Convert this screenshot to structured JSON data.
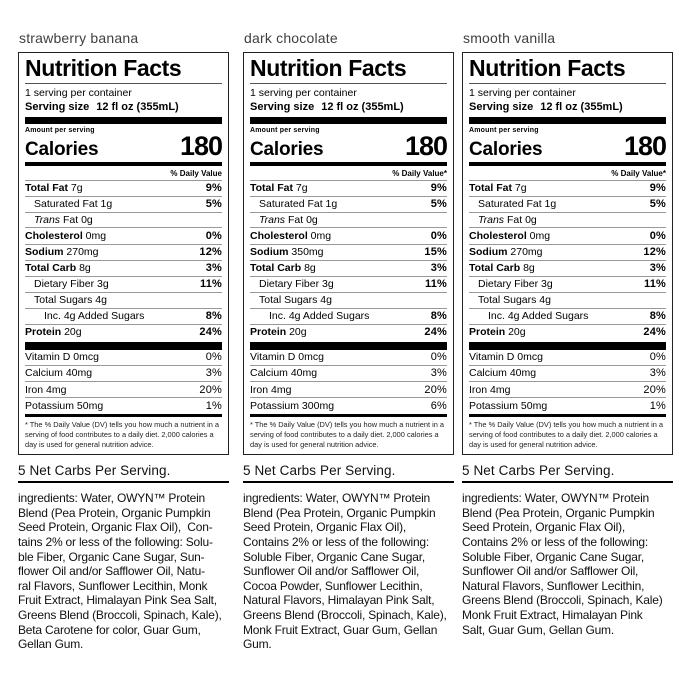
{
  "labels": [
    {
      "flavor": "strawberry banana",
      "title": "Nutrition Facts",
      "servings": "1 serving per container",
      "serving_size_label": "Serving size",
      "serving_size_value": "12 fl oz (355mL)",
      "amount_per_serving": "Amount per serving",
      "calories_label": "Calories",
      "calories_value": "180",
      "daily_value_header": "% Daily Value",
      "rows": [
        {
          "bold": "Total Fat",
          "rest": " 7g",
          "value": "9%",
          "indent": 0,
          "value_bold": true
        },
        {
          "rest": "Saturated Fat 1g",
          "value": "5%",
          "indent": 1,
          "value_bold": true
        },
        {
          "italic": "Trans",
          "rest": " Fat 0g",
          "value": "",
          "indent": 1
        },
        {
          "bold": "Cholesterol",
          "rest": " 0mg",
          "value": "0%",
          "indent": 0,
          "value_bold": true
        },
        {
          "bold": "Sodium",
          "rest": " 270mg",
          "value": "12%",
          "indent": 0,
          "value_bold": true
        },
        {
          "bold": "Total Carb",
          "rest": " 8g",
          "value": "3%",
          "indent": 0,
          "value_bold": true
        },
        {
          "rest": "Dietary Fiber 3g",
          "value": "11%",
          "indent": 1,
          "value_bold": true
        },
        {
          "rest": "Total Sugars 4g",
          "value": "",
          "indent": 1
        },
        {
          "rest": "Inc. 4g Added Sugars",
          "value": "8%",
          "indent": 2,
          "value_bold": true
        },
        {
          "bold": "Protein",
          "rest": " 20g",
          "value": "24%",
          "indent": 0,
          "value_bold": true
        }
      ],
      "vitamins": [
        {
          "name": "Vitamin D 0mcg",
          "value": "0%"
        },
        {
          "name": "Calcium 40mg",
          "value": "3%"
        },
        {
          "name": "Iron 4mg",
          "value": "20%"
        },
        {
          "name": "Potassium 50mg",
          "value": "1%"
        }
      ],
      "footnote": "* The % Daily Value (DV) tells you how much a nutrient in a serving of food contributes to a daily diet. 2,000 calories a day is used for general nutrition advice.",
      "net_carbs": "5 Net Carbs Per Serving.",
      "ingredients_lines": [
        "ingredients: Water, OWYN™ Protein",
        "Blend (Pea Protein, Organic Pumpkin",
        "Seed Protein, Organic Flax Oil),  Con-",
        "tains 2% or less of the following: Solu-",
        "ble Fiber, Organic Cane Sugar, Sun-",
        "flower Oil and/or Safflower Oil, Natu-",
        "ral Flavors, Sunflower Lecithin, Monk",
        "Fruit Extract, Himalayan Pink Sea Salt,",
        "Greens Blend (Broccoli, Spinach, Kale),",
        "Beta Carotene for color, Guar Gum,",
        "Gellan Gum."
      ]
    },
    {
      "flavor": "dark chocolate",
      "title": "Nutrition Facts",
      "servings": "1 serving per container",
      "serving_size_label": "Serving size",
      "serving_size_value": "12 fl oz (355mL)",
      "amount_per_serving": "Amount per serving",
      "calories_label": "Calories",
      "calories_value": "180",
      "daily_value_header": "% Daily Value*",
      "rows": [
        {
          "bold": "Total Fat",
          "rest": " 7g",
          "value": "9%",
          "indent": 0,
          "value_bold": true
        },
        {
          "rest": "Saturated Fat 1g",
          "value": "5%",
          "indent": 1,
          "value_bold": true
        },
        {
          "italic": "Trans",
          "rest": " Fat 0g",
          "value": "",
          "indent": 1
        },
        {
          "bold": "Cholesterol",
          "rest": " 0mg",
          "value": "0%",
          "indent": 0,
          "value_bold": true
        },
        {
          "bold": "Sodium",
          "rest": " 350mg",
          "value": "15%",
          "indent": 0,
          "value_bold": true
        },
        {
          "bold": "Total Carb",
          "rest": " 8g",
          "value": "3%",
          "indent": 0,
          "value_bold": true
        },
        {
          "rest": "Dietary Fiber 3g",
          "value": "11%",
          "indent": 1,
          "value_bold": true
        },
        {
          "rest": "Total Sugars 4g",
          "value": "",
          "indent": 1
        },
        {
          "rest": "Inc. 4g Added Sugars",
          "value": "8%",
          "indent": 2,
          "value_bold": true
        },
        {
          "bold": "Protein",
          "rest": " 20g",
          "value": "24%",
          "indent": 0,
          "value_bold": true
        }
      ],
      "vitamins": [
        {
          "name": "Vitamin D 0mcg",
          "value": "0%"
        },
        {
          "name": "Calcium 40mg",
          "value": "3%"
        },
        {
          "name": "Iron 4mg",
          "value": "20%"
        },
        {
          "name": "Potassium 300mg",
          "value": "6%"
        }
      ],
      "footnote": "* The % Daily Value (DV) tells you how much a nutrient in a serving of food contributes to a daily diet. 2,000 calories a day is used for general nutrition advice.",
      "net_carbs": "5 Net Carbs Per Serving.",
      "ingredients_lines": [
        "ingredients: Water, OWYN™ Protein",
        "Blend (Pea Protein, Organic Pumpkin",
        "Seed Protein, Organic Flax Oil),",
        "Contains 2% or less of the following:",
        "Soluble Fiber, Organic Cane Sugar,",
        "Sunflower Oil and/or Safflower Oil,",
        "Cocoa Powder, Sunflower Lecithin,",
        "Natural Flavors, Himalayan Pink Salt,",
        "Greens Blend (Broccoli, Spinach, Kale),",
        "Monk Fruit Extract, Guar Gum, Gellan",
        "Gum."
      ]
    },
    {
      "flavor": "smooth vanilla",
      "title": "Nutrition Facts",
      "servings": "1 serving per container",
      "serving_size_label": "Serving size",
      "serving_size_value": "12 fl oz (355mL)",
      "amount_per_serving": "Amount per serving",
      "calories_label": "Calories",
      "calories_value": "180",
      "daily_value_header": "% Daily Value*",
      "rows": [
        {
          "bold": "Total Fat",
          "rest": " 7g",
          "value": "9%",
          "indent": 0,
          "value_bold": true
        },
        {
          "rest": "Saturated Fat 1g",
          "value": "5%",
          "indent": 1,
          "value_bold": true
        },
        {
          "italic": "Trans",
          "rest": " Fat 0g",
          "value": "",
          "indent": 1
        },
        {
          "bold": "Cholesterol",
          "rest": " 0mg",
          "value": "0%",
          "indent": 0,
          "value_bold": true
        },
        {
          "bold": "Sodium",
          "rest": " 270mg",
          "value": "12%",
          "indent": 0,
          "value_bold": true
        },
        {
          "bold": "Total Carb",
          "rest": " 8g",
          "value": "3%",
          "indent": 0,
          "value_bold": true
        },
        {
          "rest": "Dietary Fiber 3g",
          "value": "11%",
          "indent": 1,
          "value_bold": true
        },
        {
          "rest": "Total Sugars 4g",
          "value": "",
          "indent": 1
        },
        {
          "rest": "Inc. 4g Added Sugars",
          "value": "8%",
          "indent": 2,
          "value_bold": true
        },
        {
          "bold": "Protein",
          "rest": " 20g",
          "value": "24%",
          "indent": 0,
          "value_bold": true
        }
      ],
      "vitamins": [
        {
          "name": "Vitamin D 0mcg",
          "value": "0%"
        },
        {
          "name": "Calcium 40mg",
          "value": "3%"
        },
        {
          "name": "Iron 4mg",
          "value": "20%"
        },
        {
          "name": "Potassium 50mg",
          "value": "1%"
        }
      ],
      "footnote": "* The % Daily Value (DV) tells you how much a nutrient in a serving of food contributes to a daily diet. 2,000 calories a day is used for general nutrition advice.",
      "net_carbs": "5 Net Carbs Per Serving.",
      "ingredients_lines": [
        "ingredients: Water, OWYN™ Protein",
        "Blend (Pea Protein, Organic Pumpkin",
        "Seed Protein, Organic Flax Oil),",
        "Contains 2% or less of the following:",
        "Soluble Fiber, Organic Cane Sugar,",
        "Sunflower Oil and/or Safflower Oil,",
        "Natural Flavors, Sunflower Lecithin,",
        "Greens Blend (Broccoli, Spinach, Kale)",
        "Monk Fruit Extract, Himalayan Pink",
        "Salt, Guar Gum, Gellan Gum."
      ]
    }
  ]
}
